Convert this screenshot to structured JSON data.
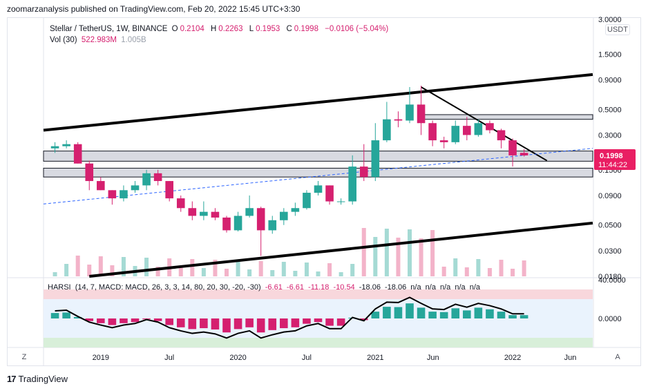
{
  "attribution": "zoomarzanalysis published on TradingView.com, Feb 20, 2022 15:45 UTC+3:30",
  "legend": {
    "symbol": "Stellar / TetherUS, 1W, BINANCE",
    "open_label": "O",
    "open": "0.2104",
    "high_label": "H",
    "high": "0.2263",
    "low_label": "L",
    "low": "0.1953",
    "close_label": "C",
    "close": "0.1998",
    "change": "−0.0106 (−5.04%)",
    "vol_label": "Vol (30)",
    "vol_value": "522.983M",
    "vol_ma": "1.005B"
  },
  "indicator": {
    "name": "HARSI",
    "params": "(14, 7, MACD: MACD, 26, 3, 3, 14, 80, 20, 30, -20, -30)",
    "values": [
      "-6.61",
      "-6.61",
      "-11.18",
      "-10.54",
      "-18.06",
      "-18.06",
      "n/a",
      "n/a",
      "n/a",
      "n/a",
      "n/a"
    ],
    "axis_labels": [
      "40.0000",
      "0.0000"
    ]
  },
  "currency_button": "USDT",
  "price_badge": {
    "price": "0.1998",
    "countdown": "11:44:22"
  },
  "price_axis_labels": [
    "3.0000",
    "1.5000",
    "0.9000",
    "0.5000",
    "0.3000",
    "0.1500",
    "0.0900",
    "0.0500",
    "0.0300",
    "0.0180"
  ],
  "time_axis_labels": [
    "2019",
    "Jul",
    "2020",
    "Jul",
    "2021",
    "Jun",
    "2022",
    "Jun"
  ],
  "zoom_button": "Z",
  "auto_button": "A",
  "footer_logo": "TradingView",
  "colors": {
    "up": "#26a69a",
    "down": "#d5206f",
    "trendline": "#000000",
    "dashed": "#2962ff",
    "badge": "#e91e63"
  },
  "chart_data": {
    "type": "candlestick",
    "symbol": "XLMUSDT",
    "timeframe": "1W",
    "y_scale": "log",
    "ylim": [
      0.018,
      3.0
    ],
    "xlim": [
      "2018-08",
      "2022-08"
    ],
    "candles": [
      {
        "t": "2018-09",
        "o": 0.23,
        "h": 0.26,
        "l": 0.21,
        "c": 0.24
      },
      {
        "t": "2018-10",
        "o": 0.24,
        "h": 0.27,
        "l": 0.23,
        "c": 0.25
      },
      {
        "t": "2018-11",
        "o": 0.25,
        "h": 0.26,
        "l": 0.17,
        "c": 0.17
      },
      {
        "t": "2018-12",
        "o": 0.17,
        "h": 0.18,
        "l": 0.1,
        "c": 0.12
      },
      {
        "t": "2019-01",
        "o": 0.12,
        "h": 0.13,
        "l": 0.1,
        "c": 0.1
      },
      {
        "t": "2019-02",
        "o": 0.1,
        "h": 0.1,
        "l": 0.075,
        "c": 0.085
      },
      {
        "t": "2019-03",
        "o": 0.085,
        "h": 0.11,
        "l": 0.08,
        "c": 0.1
      },
      {
        "t": "2019-04",
        "o": 0.1,
        "h": 0.12,
        "l": 0.095,
        "c": 0.11
      },
      {
        "t": "2019-05",
        "o": 0.11,
        "h": 0.15,
        "l": 0.1,
        "c": 0.14
      },
      {
        "t": "2019-06",
        "o": 0.14,
        "h": 0.15,
        "l": 0.11,
        "c": 0.12
      },
      {
        "t": "2019-07",
        "o": 0.12,
        "h": 0.12,
        "l": 0.08,
        "c": 0.085
      },
      {
        "t": "2019-08",
        "o": 0.085,
        "h": 0.09,
        "l": 0.065,
        "c": 0.07
      },
      {
        "t": "2019-09",
        "o": 0.07,
        "h": 0.08,
        "l": 0.055,
        "c": 0.06
      },
      {
        "t": "2019-10",
        "o": 0.06,
        "h": 0.08,
        "l": 0.055,
        "c": 0.065
      },
      {
        "t": "2019-11",
        "o": 0.065,
        "h": 0.07,
        "l": 0.055,
        "c": 0.058
      },
      {
        "t": "2019-12",
        "o": 0.058,
        "h": 0.06,
        "l": 0.043,
        "c": 0.045
      },
      {
        "t": "2020-01",
        "o": 0.045,
        "h": 0.065,
        "l": 0.044,
        "c": 0.06
      },
      {
        "t": "2020-02",
        "o": 0.06,
        "h": 0.09,
        "l": 0.058,
        "c": 0.07
      },
      {
        "t": "2020-03",
        "o": 0.07,
        "h": 0.072,
        "l": 0.027,
        "c": 0.045
      },
      {
        "t": "2020-04",
        "o": 0.045,
        "h": 0.06,
        "l": 0.042,
        "c": 0.055
      },
      {
        "t": "2020-05",
        "o": 0.055,
        "h": 0.07,
        "l": 0.05,
        "c": 0.065
      },
      {
        "t": "2020-06",
        "o": 0.065,
        "h": 0.078,
        "l": 0.06,
        "c": 0.07
      },
      {
        "t": "2020-07",
        "o": 0.07,
        "h": 0.1,
        "l": 0.068,
        "c": 0.095
      },
      {
        "t": "2020-08",
        "o": 0.095,
        "h": 0.12,
        "l": 0.09,
        "c": 0.11
      },
      {
        "t": "2020-09",
        "o": 0.11,
        "h": 0.11,
        "l": 0.075,
        "c": 0.08
      },
      {
        "t": "2020-10",
        "o": 0.08,
        "h": 0.085,
        "l": 0.075,
        "c": 0.08
      },
      {
        "t": "2020-11",
        "o": 0.08,
        "h": 0.2,
        "l": 0.075,
        "c": 0.16
      },
      {
        "t": "2020-12",
        "o": 0.16,
        "h": 0.25,
        "l": 0.12,
        "c": 0.13
      },
      {
        "t": "2021-01",
        "o": 0.13,
        "h": 0.38,
        "l": 0.12,
        "c": 0.27
      },
      {
        "t": "2021-02",
        "o": 0.27,
        "h": 0.58,
        "l": 0.26,
        "c": 0.41
      },
      {
        "t": "2021-03",
        "o": 0.41,
        "h": 0.48,
        "l": 0.35,
        "c": 0.4
      },
      {
        "t": "2021-04",
        "o": 0.4,
        "h": 0.78,
        "l": 0.38,
        "c": 0.55
      },
      {
        "t": "2021-05",
        "o": 0.55,
        "h": 0.8,
        "l": 0.3,
        "c": 0.38
      },
      {
        "t": "2021-06",
        "o": 0.38,
        "h": 0.4,
        "l": 0.24,
        "c": 0.27
      },
      {
        "t": "2021-07",
        "o": 0.27,
        "h": 0.29,
        "l": 0.23,
        "c": 0.26
      },
      {
        "t": "2021-08",
        "o": 0.26,
        "h": 0.4,
        "l": 0.25,
        "c": 0.36
      },
      {
        "t": "2021-09",
        "o": 0.36,
        "h": 0.43,
        "l": 0.27,
        "c": 0.3
      },
      {
        "t": "2021-10",
        "o": 0.3,
        "h": 0.41,
        "l": 0.29,
        "c": 0.38
      },
      {
        "t": "2021-11",
        "o": 0.38,
        "h": 0.4,
        "l": 0.31,
        "c": 0.33
      },
      {
        "t": "2021-12",
        "o": 0.33,
        "h": 0.34,
        "l": 0.23,
        "c": 0.27
      },
      {
        "t": "2022-01",
        "o": 0.27,
        "h": 0.28,
        "l": 0.16,
        "c": 0.2
      },
      {
        "t": "2022-02",
        "o": 0.2104,
        "h": 0.2263,
        "l": 0.1953,
        "c": 0.1998
      }
    ],
    "annotations": [
      {
        "type": "channel_upper",
        "from": {
          "t": "2018-08",
          "y": 0.33
        },
        "to": {
          "t": "2022-08",
          "y": 1.0
        }
      },
      {
        "type": "channel_lower",
        "from": {
          "t": "2018-12",
          "y": 0.018
        },
        "to": {
          "t": "2022-08",
          "y": 0.052
        }
      },
      {
        "type": "descending_trendline",
        "from": {
          "t": "2021-05",
          "y": 0.78
        },
        "to": {
          "t": "2022-04",
          "y": 0.18
        }
      },
      {
        "type": "dashed_trendline",
        "from": {
          "t": "2018-08",
          "y": 0.076
        },
        "to": {
          "t": "2022-08",
          "y": 0.23
        }
      },
      {
        "type": "zone",
        "y_low": 0.178,
        "y_high": 0.218
      },
      {
        "type": "zone",
        "y_low": 0.13,
        "y_high": 0.155
      },
      {
        "type": "zone",
        "y_low": 0.41,
        "y_high": 0.45
      }
    ],
    "oscillator": {
      "name": "HARSI",
      "ylim": [
        -30,
        40
      ],
      "overbought": [
        20,
        30
      ],
      "oversold": [
        -20,
        -30
      ],
      "last_values": [
        -6.61,
        -6.61,
        -11.18,
        -10.54,
        -18.06,
        -18.06
      ]
    }
  }
}
